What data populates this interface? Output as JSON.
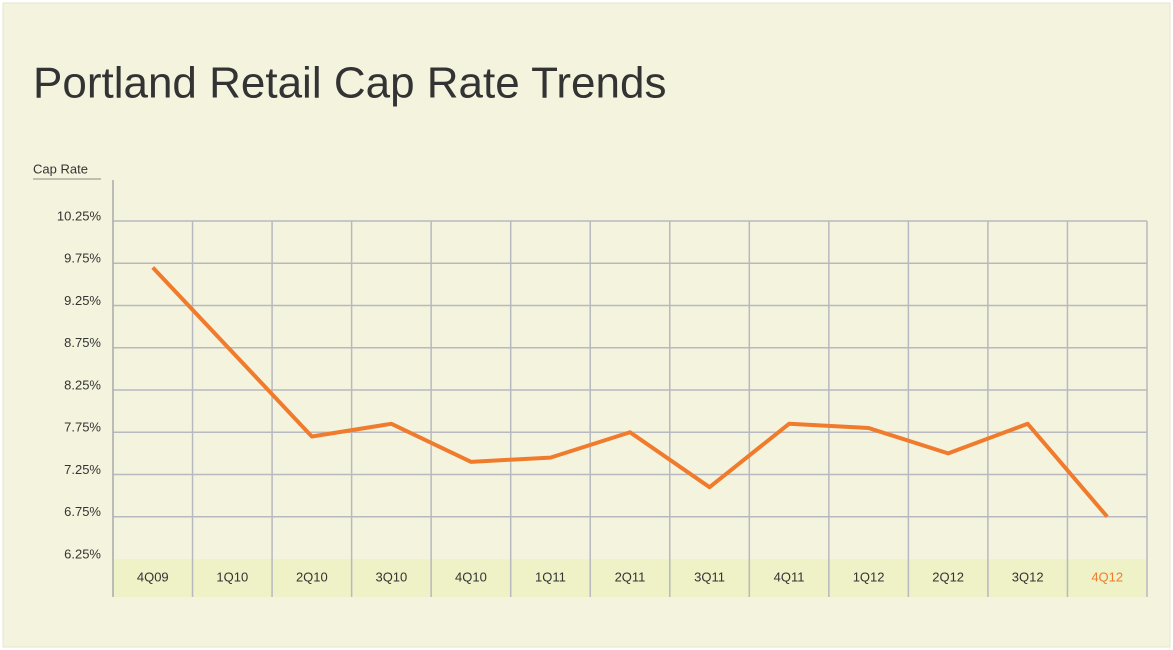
{
  "chart_data": {
    "type": "line",
    "title": "Portland Retail Cap Rate Trends",
    "y_label": "Cap Rate",
    "categories": [
      "4Q09",
      "1Q10",
      "2Q10",
      "3Q10",
      "4Q10",
      "1Q11",
      "2Q11",
      "3Q11",
      "4Q11",
      "1Q12",
      "2Q12",
      "3Q12",
      "4Q12"
    ],
    "series": [
      {
        "name": "Cap Rate",
        "color": "#f07b2c",
        "values": [
          9.7,
          8.7,
          7.7,
          7.85,
          7.4,
          7.45,
          7.75,
          7.1,
          7.85,
          7.8,
          7.5,
          7.85,
          6.75
        ]
      }
    ],
    "ylim": [
      6.25,
      10.25
    ],
    "yticks": [
      {
        "value": 6.25,
        "label": "6.25%"
      },
      {
        "value": 6.75,
        "label": "6.75%"
      },
      {
        "value": 7.25,
        "label": "7.25%"
      },
      {
        "value": 7.75,
        "label": "7.75%"
      },
      {
        "value": 8.25,
        "label": "8.25%"
      },
      {
        "value": 8.75,
        "label": "8.75%"
      },
      {
        "value": 9.25,
        "label": "9.25%"
      },
      {
        "value": 9.75,
        "label": "9.75%"
      },
      {
        "value": 10.25,
        "label": "10.25%"
      }
    ],
    "grid": true,
    "highlight_last_category": true
  }
}
